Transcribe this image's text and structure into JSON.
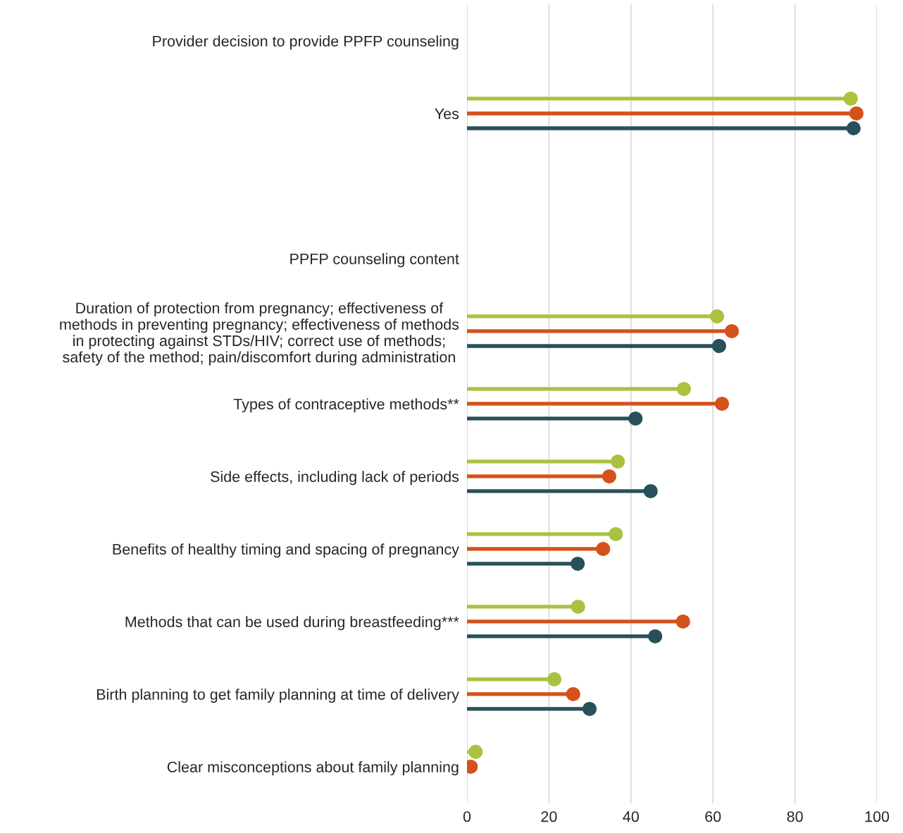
{
  "chart_data": {
    "type": "lollipop",
    "orientation": "horizontal",
    "categories": [
      "Provider decision to provide PPFP counseling",
      "Yes",
      null,
      "PPFP counseling content",
      "Duration of protection from pregnancy; effectiveness of\nmethods in preventing pregnancy; effectiveness of methods\nin protecting against STDs/HIV; correct use of methods;\nsafety of the method; pain/discomfort during administration",
      "Types of contraceptive methods**",
      "Side effects, including lack of periods",
      "Benefits of healthy timing and spacing of pregnancy",
      "Methods that can be used during breastfeeding***",
      "Birth planning to get family planning at time of delivery",
      "Clear misconceptions about family planning"
    ],
    "series": [
      {
        "color": "#a9c23f",
        "values": [
          null,
          93.6,
          null,
          null,
          61.0,
          52.9,
          36.8,
          36.3,
          27.1,
          21.3,
          2.1
        ]
      },
      {
        "color": "#d4511a",
        "values": [
          null,
          95.0,
          null,
          null,
          64.6,
          62.2,
          34.7,
          33.2,
          52.7,
          25.9,
          0.9
        ]
      },
      {
        "color": "#28505a",
        "values": [
          null,
          94.3,
          null,
          null,
          61.5,
          41.1,
          44.8,
          27.0,
          45.9,
          29.9,
          null
        ]
      }
    ],
    "xlim": [
      0,
      100
    ],
    "xticks": [
      0,
      20,
      40,
      60,
      80,
      100
    ],
    "grid": "x",
    "marker": "circle"
  }
}
